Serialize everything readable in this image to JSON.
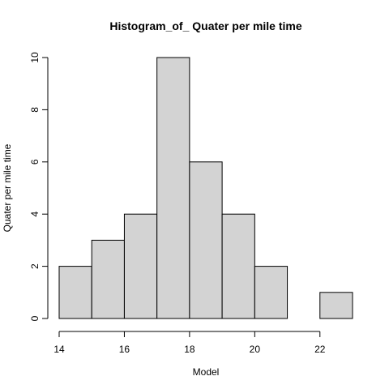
{
  "chart_data": {
    "type": "bar",
    "title": "Histogram_of_ Quater per mile time",
    "xlabel": "Model",
    "ylabel": "Quater per mile time",
    "bins": [
      {
        "start": 14,
        "end": 15,
        "count": 2
      },
      {
        "start": 15,
        "end": 16,
        "count": 3
      },
      {
        "start": 16,
        "end": 17,
        "count": 4
      },
      {
        "start": 17,
        "end": 18,
        "count": 10
      },
      {
        "start": 18,
        "end": 19,
        "count": 6
      },
      {
        "start": 19,
        "end": 20,
        "count": 4
      },
      {
        "start": 20,
        "end": 21,
        "count": 2
      },
      {
        "start": 21,
        "end": 22,
        "count": 0
      },
      {
        "start": 22,
        "end": 23,
        "count": 1
      }
    ],
    "xlim": [
      14,
      23
    ],
    "ylim": [
      0,
      10
    ],
    "x_ticks": [
      14,
      16,
      18,
      20,
      22
    ],
    "y_ticks": [
      0,
      2,
      4,
      6,
      8,
      10
    ],
    "colors": {
      "bar_fill": "#d3d3d3",
      "bar_stroke": "#000000"
    },
    "grid": false,
    "legend": "none"
  }
}
